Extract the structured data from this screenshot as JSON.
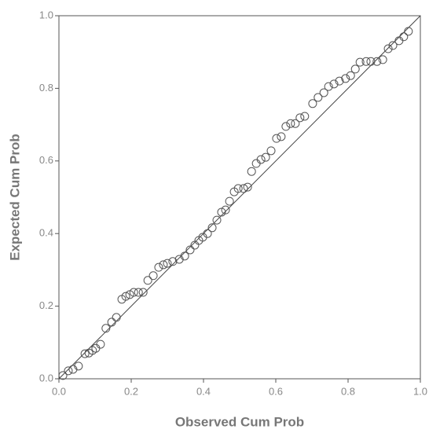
{
  "chart_data": {
    "type": "scatter",
    "x_label": "Observed Cum Prob",
    "y_label": "Expected Cum Prob",
    "xlim": [
      0,
      1
    ],
    "ylim": [
      0,
      1
    ],
    "xticks": [
      {
        "value": 0,
        "label": "0.0"
      },
      0.2,
      0.4,
      0.6,
      0.8,
      {
        "value": 1,
        "label": "1.0"
      }
    ],
    "yticks": [
      {
        "value": 0,
        "label": "0.0"
      },
      0.2,
      0.4,
      0.6,
      0.8,
      {
        "value": 1,
        "label": "1.0"
      }
    ],
    "reference_line": true,
    "series": [
      {
        "color": "#555555",
        "x": [
          0.011,
          0.026,
          0.039,
          0.054,
          0.072,
          0.083,
          0.093,
          0.102,
          0.115,
          0.13,
          0.146,
          0.159,
          0.174,
          0.185,
          0.196,
          0.207,
          0.22,
          0.233,
          0.246,
          0.261,
          0.276,
          0.289,
          0.3,
          0.315,
          0.333,
          0.348,
          0.363,
          0.376,
          0.387,
          0.398,
          0.411,
          0.424,
          0.437,
          0.45,
          0.461,
          0.472,
          0.485,
          0.496,
          0.511,
          0.522,
          0.533,
          0.546,
          0.559,
          0.572,
          0.587,
          0.602,
          0.615,
          0.628,
          0.641,
          0.654,
          0.667,
          0.68,
          0.702,
          0.717,
          0.733,
          0.746,
          0.761,
          0.776,
          0.793,
          0.807,
          0.82,
          0.833,
          0.85,
          0.863,
          0.88,
          0.896,
          0.911,
          0.924,
          0.941,
          0.954,
          0.967
        ],
        "values": [
          0.009,
          0.022,
          0.026,
          0.035,
          0.069,
          0.071,
          0.078,
          0.084,
          0.095,
          0.139,
          0.156,
          0.169,
          0.219,
          0.227,
          0.232,
          0.238,
          0.238,
          0.238,
          0.271,
          0.284,
          0.307,
          0.314,
          0.318,
          0.323,
          0.329,
          0.338,
          0.355,
          0.368,
          0.381,
          0.39,
          0.4,
          0.416,
          0.437,
          0.459,
          0.465,
          0.489,
          0.515,
          0.524,
          0.524,
          0.528,
          0.571,
          0.593,
          0.604,
          0.61,
          0.628,
          0.662,
          0.667,
          0.695,
          0.703,
          0.703,
          0.719,
          0.723,
          0.758,
          0.775,
          0.788,
          0.805,
          0.812,
          0.82,
          0.827,
          0.835,
          0.853,
          0.872,
          0.874,
          0.874,
          0.874,
          0.879,
          0.909,
          0.918,
          0.931,
          0.942,
          0.957
        ]
      }
    ]
  }
}
